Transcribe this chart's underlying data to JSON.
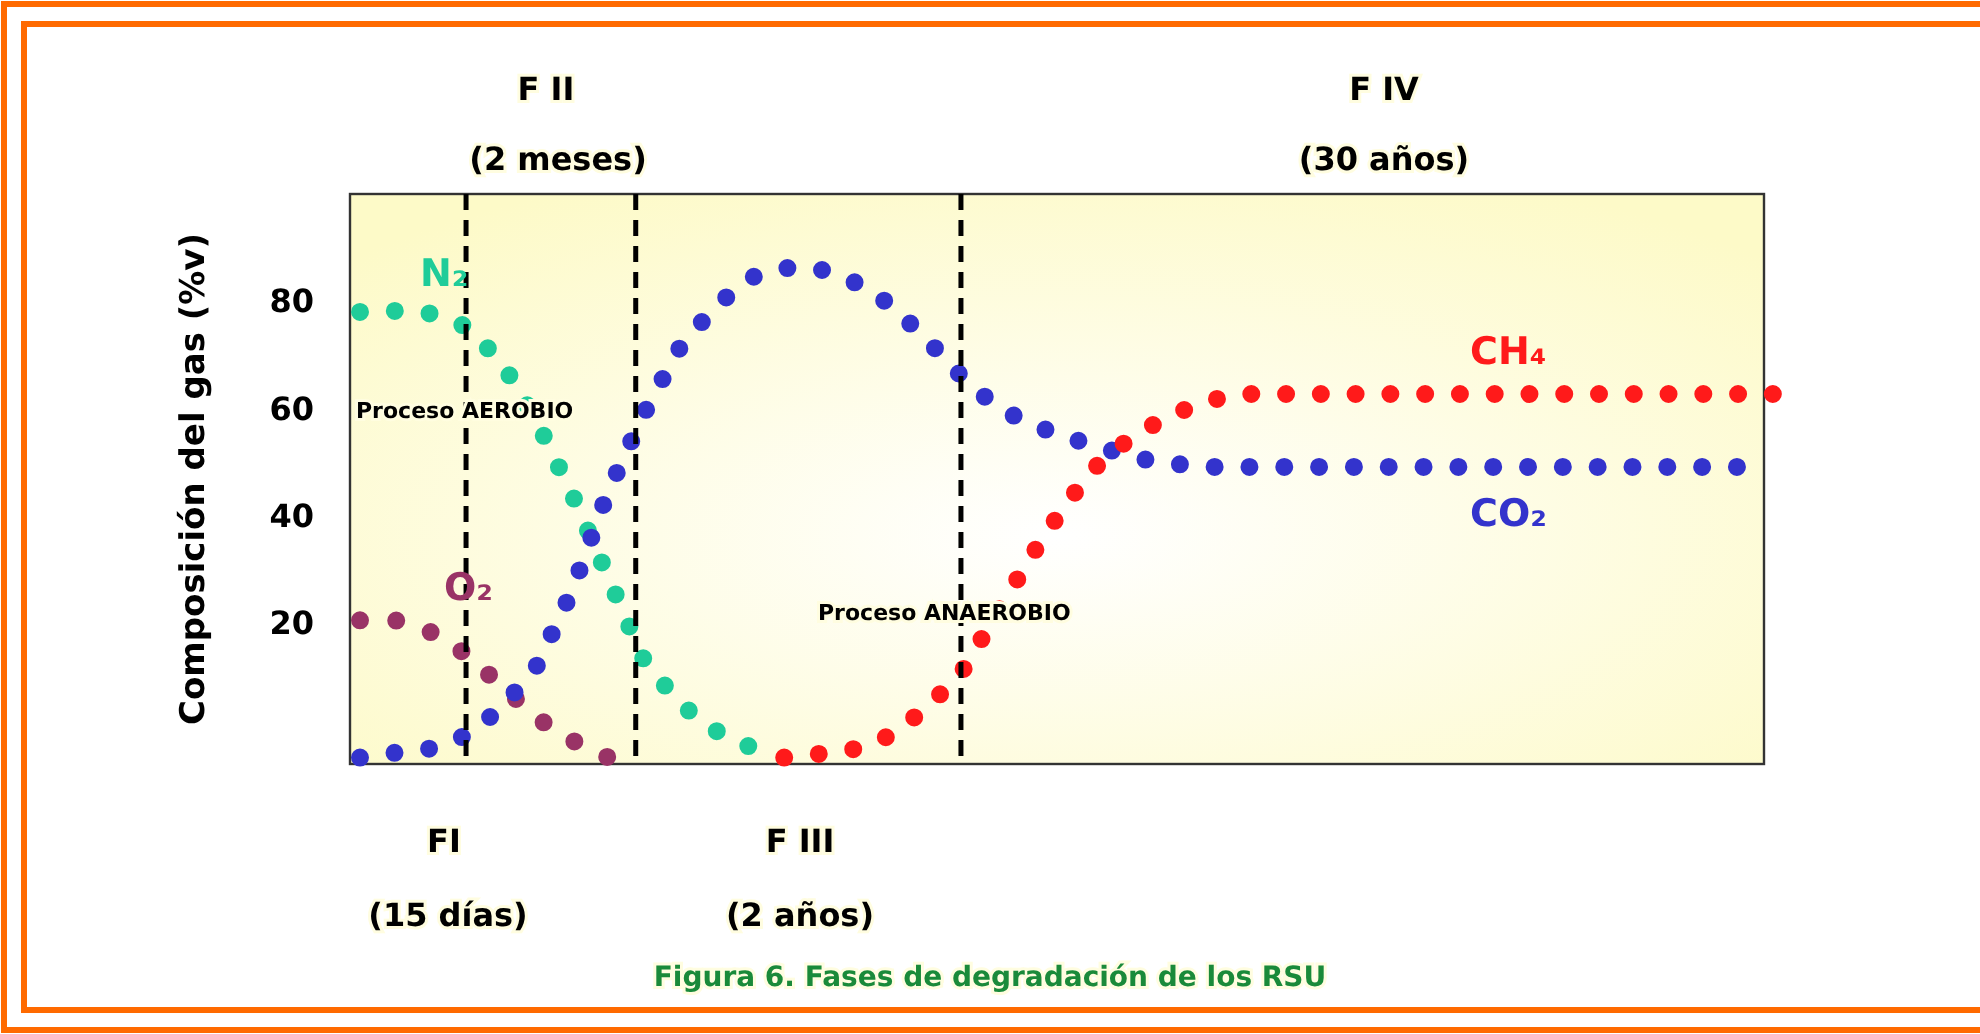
{
  "chart_data": {
    "type": "line",
    "ylabel": "Composición del gas (%v)",
    "categories": [
      null,
      null,
      null,
      null,
      null,
      null,
      null,
      null,
      null,
      null,
      null,
      null,
      null,
      null,
      null,
      null,
      null,
      null,
      null,
      null,
      null,
      null,
      null,
      null,
      null,
      null,
      null,
      null,
      null,
      null,
      null,
      null,
      null,
      null,
      null,
      null,
      null,
      null,
      null,
      null,
      null
    ],
    "ylim": [
      -6.3,
      100
    ],
    "yticks": [
      20,
      40,
      60,
      80
    ],
    "grid": false,
    "line_style": "dotted",
    "series": [
      {
        "name": "N₂",
        "color": "#1fcc99",
        "values": [
          78.0,
          78.2,
          77.7,
          75.3,
          68.7,
          57.6,
          44.0,
          28.9,
          13.5,
          5.2,
          0.1,
          -3.0,
          null,
          null,
          null,
          null,
          null,
          null,
          null,
          null,
          null,
          null,
          null,
          null,
          null,
          null,
          null,
          null,
          null,
          null,
          null,
          null,
          null,
          null,
          null,
          null,
          null,
          null,
          null,
          null,
          null
        ]
      },
      {
        "name": "O₂",
        "color": "#993366",
        "values": [
          20.5,
          20.5,
          18.3,
          14.2,
          8.3,
          2.3,
          -1.9,
          -5.0,
          null,
          null,
          null,
          null,
          null,
          null,
          null,
          null,
          null,
          null,
          null,
          null,
          null,
          null,
          null,
          null,
          null,
          null,
          null,
          null,
          null,
          null,
          null,
          null,
          null,
          null,
          null,
          null,
          null,
          null,
          null,
          null,
          null
        ]
      },
      {
        "name": "CO₂",
        "color": "#3333cc",
        "values": [
          -5.1,
          -4.2,
          -3.4,
          -1.0,
          4.1,
          12.0,
          26.0,
          44.2,
          58.6,
          70.9,
          78.7,
          84.3,
          86.2,
          86.0,
          83.5,
          79.4,
          73.1,
          66.1,
          60.3,
          57.0,
          54.6,
          52.7,
          50.7,
          49.7,
          49.1,
          49.1,
          49.1,
          49.1,
          49.1,
          49.1,
          49.1,
          49.1,
          49.1,
          49.1,
          49.1,
          49.1,
          49.1,
          49.1,
          49.1,
          49.1,
          null
        ]
      },
      {
        "name": "CH₄",
        "color": "#ff1a1a",
        "values": [
          null,
          null,
          null,
          null,
          null,
          null,
          null,
          null,
          null,
          null,
          null,
          null,
          -5.1,
          -4.4,
          -3.5,
          -1.0,
          4.0,
          10.6,
          21.6,
          32.6,
          42.5,
          50.5,
          55.4,
          58.9,
          61.5,
          62.7,
          62.7,
          62.7,
          62.7,
          62.7,
          62.7,
          62.7,
          62.7,
          62.7,
          62.7,
          62.7,
          62.7,
          62.7,
          62.7,
          62.7,
          62.7
        ]
      }
    ],
    "annotations": [
      "Proceso AEROBIO",
      "Proceso ANAEROBIO",
      "F II",
      "(2 meses)",
      "F IV",
      "(30 años)",
      "FI",
      "(15 días)",
      "F III",
      "(2 años)",
      "Figura 6. Fases de degradación de los RSU"
    ]
  }
}
